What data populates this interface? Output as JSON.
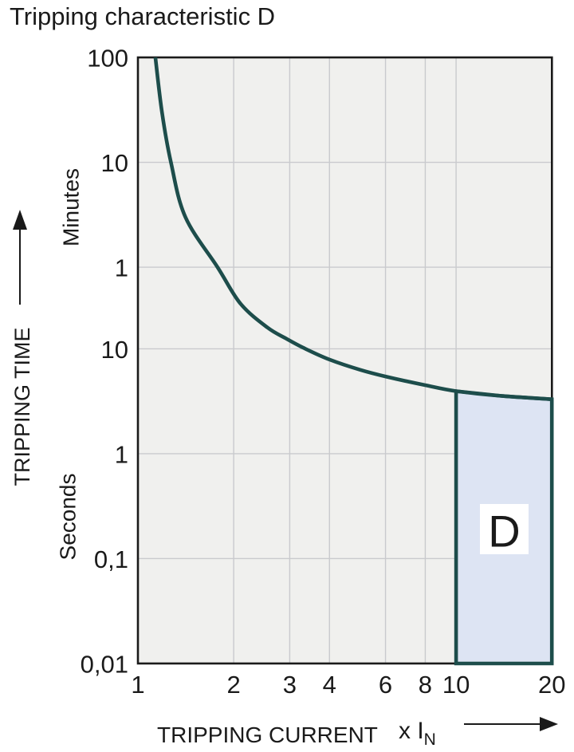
{
  "page": {
    "title": "Tripping characteristic D",
    "background": "#ffffff"
  },
  "chart_data": {
    "type": "line",
    "title": "Tripping characteristic D",
    "x_axis": {
      "label": "TRIPPING CURRENT",
      "unit_label": "x I",
      "unit_subscript": "N",
      "scale": "log",
      "range": [
        1,
        20
      ],
      "ticks": [
        {
          "value": 1,
          "label": "1"
        },
        {
          "value": 2,
          "label": "2"
        },
        {
          "value": 3,
          "label": "3"
        },
        {
          "value": 4,
          "label": "4"
        },
        {
          "value": 6,
          "label": "6"
        },
        {
          "value": 8,
          "label": "8"
        },
        {
          "value": 10,
          "label": "10"
        },
        {
          "value": 20,
          "label": "20"
        }
      ],
      "arrow_icon": "right-arrow"
    },
    "y_axis": {
      "label": "TRIPPING TIME",
      "scale": "log",
      "range_seconds": [
        0.01,
        6000
      ],
      "unit_sections": [
        {
          "label": "Minutes"
        },
        {
          "label": "Seconds"
        }
      ],
      "ticks": [
        {
          "label": "100",
          "seconds": 6000
        },
        {
          "label": "10",
          "seconds": 600
        },
        {
          "label": "1",
          "seconds": 60
        },
        {
          "label": "10",
          "seconds": 10
        },
        {
          "label": "1",
          "seconds": 1
        },
        {
          "label": "0,1",
          "seconds": 0.1
        },
        {
          "label": "0,01",
          "seconds": 0.01
        }
      ],
      "arrow_icon": "up-arrow"
    },
    "series": [
      {
        "name": "tripping-curve",
        "points_x_in_vs_seconds": [
          [
            1.135,
            6000
          ],
          [
            1.19,
            1800
          ],
          [
            1.27,
            600
          ],
          [
            1.41,
            180
          ],
          [
            1.78,
            60
          ],
          [
            2.1,
            27
          ],
          [
            2.55,
            16
          ],
          [
            2.94,
            12.4
          ],
          [
            3.36,
            10
          ],
          [
            4,
            7.9
          ],
          [
            5,
            6.3
          ],
          [
            6,
            5.45
          ],
          [
            8,
            4.5
          ],
          [
            10,
            3.95
          ],
          [
            14,
            3.55
          ],
          [
            20,
            3.3
          ]
        ]
      }
    ],
    "region": {
      "label": "D",
      "x_from": 10,
      "x_to": 20,
      "y_from_seconds": 0.01,
      "y_to": "curve"
    },
    "grid": true,
    "legend": "none",
    "colors": {
      "curve": "#1d4d4b",
      "region_fill": "#dde4f3",
      "region_border": "#1d4d4b",
      "plot_background": "#f0f0ee",
      "gridline": "#c9cacd",
      "frame": "#1a1a1a",
      "text": "#1a1a1a",
      "region_label_background": "#ffffff"
    }
  }
}
